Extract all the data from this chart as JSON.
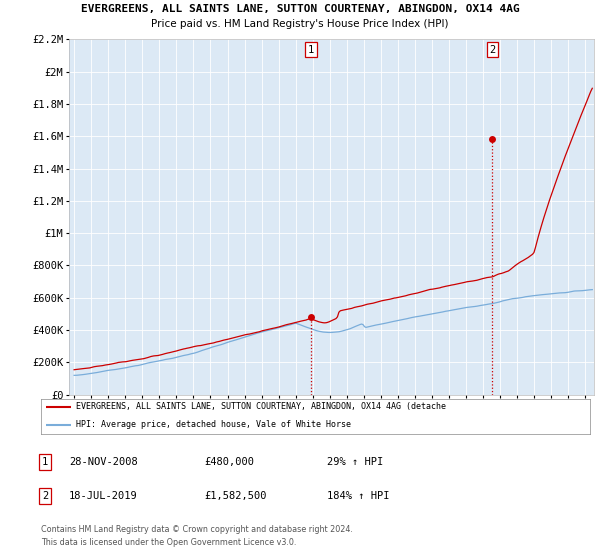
{
  "title1": "EVERGREENS, ALL SAINTS LANE, SUTTON COURTENAY, ABINGDON, OX14 4AG",
  "title2": "Price paid vs. HM Land Registry's House Price Index (HPI)",
  "bg_color": "#dce9f5",
  "ylim": [
    0,
    2200000
  ],
  "yticks": [
    0,
    200000,
    400000,
    600000,
    800000,
    1000000,
    1200000,
    1400000,
    1600000,
    1800000,
    2000000,
    2200000
  ],
  "ytick_labels": [
    "£0",
    "£200K",
    "£400K",
    "£600K",
    "£800K",
    "£1M",
    "£1.2M",
    "£1.4M",
    "£1.6M",
    "£1.8M",
    "£2M",
    "£2.2M"
  ],
  "xlim_start": 1994.7,
  "xlim_end": 2025.5,
  "xticks": [
    1995,
    1996,
    1997,
    1998,
    1999,
    2000,
    2001,
    2002,
    2003,
    2004,
    2005,
    2006,
    2007,
    2008,
    2009,
    2010,
    2011,
    2012,
    2013,
    2014,
    2015,
    2016,
    2017,
    2018,
    2019,
    2020,
    2021,
    2022,
    2023,
    2024,
    2025
  ],
  "sale1_x": 2008.91,
  "sale1_y": 480000,
  "sale2_x": 2019.54,
  "sale2_y": 1582500,
  "red_color": "#cc0000",
  "blue_color": "#7aadda",
  "legend_text1": "EVERGREENS, ALL SAINTS LANE, SUTTON COURTENAY, ABINGDON, OX14 4AG (detache",
  "legend_text2": "HPI: Average price, detached house, Vale of White Horse",
  "sale1_date": "28-NOV-2008",
  "sale1_price": "£480,000",
  "sale1_hpi": "29% ↑ HPI",
  "sale2_date": "18-JUL-2019",
  "sale2_price": "£1,582,500",
  "sale2_hpi": "184% ↑ HPI",
  "footer1": "Contains HM Land Registry data © Crown copyright and database right 2024.",
  "footer2": "This data is licensed under the Open Government Licence v3.0."
}
